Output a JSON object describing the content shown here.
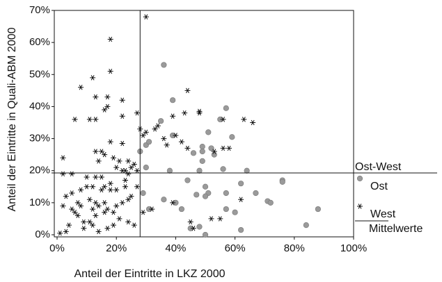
{
  "chart_data": {
    "type": "scatter",
    "xlabel": "Anteil der Eintritte in LKZ 2000",
    "ylabel": "Anteil der Eintritte in Quali-ABM 2000",
    "legend_title": "Ost-West",
    "xlim": [
      0,
      100
    ],
    "ylim": [
      0,
      70
    ],
    "xticks": [
      {
        "value": 0,
        "label": "0%"
      },
      {
        "value": 20,
        "label": "20%"
      },
      {
        "value": 40,
        "label": "40%"
      },
      {
        "value": 60,
        "label": "60%"
      },
      {
        "value": 80,
        "label": "80%"
      },
      {
        "value": 100,
        "label": "100%"
      }
    ],
    "yticks": [
      {
        "value": 0,
        "label": "0%"
      },
      {
        "value": 10,
        "label": "10%"
      },
      {
        "value": 20,
        "label": "20%"
      },
      {
        "value": 30,
        "label": "30%"
      },
      {
        "value": 40,
        "label": "40%"
      },
      {
        "value": 50,
        "label": "50%"
      },
      {
        "value": 60,
        "label": "60%"
      },
      {
        "value": 70,
        "label": "70%"
      }
    ],
    "series": [
      {
        "name": "Ost",
        "color": "#9a9a9a",
        "marker": "circle",
        "x": [
          36,
          39,
          35,
          57,
          55,
          51,
          59,
          49,
          49,
          52,
          46,
          53,
          39,
          30,
          31,
          38,
          49,
          56,
          64,
          48,
          44,
          62,
          67,
          76,
          76,
          71,
          72,
          57,
          50,
          51,
          50,
          47,
          60,
          57,
          48,
          45,
          50,
          62,
          84,
          88,
          30,
          28,
          29,
          31,
          36,
          40,
          42
        ],
        "values": [
          53,
          42,
          35.5,
          39.5,
          36,
          32,
          30.5,
          27.5,
          26,
          27,
          25.5,
          25,
          31,
          28,
          29,
          20,
          23,
          20.5,
          20,
          20,
          17,
          16,
          13,
          17,
          16.5,
          10.5,
          10,
          13,
          15,
          13,
          12,
          12.5,
          7,
          8,
          2.5,
          2,
          0,
          1.5,
          3,
          8,
          21,
          26,
          13,
          8,
          11,
          10,
          8
        ]
      },
      {
        "name": "West",
        "color": "#111111",
        "marker": "asterisk",
        "x": [
          30,
          18,
          18,
          12,
          8,
          13,
          22,
          17,
          44,
          16,
          17,
          22,
          11,
          6,
          13,
          27,
          56,
          63,
          66,
          48,
          48,
          43,
          39,
          33,
          29,
          30,
          34,
          28,
          40,
          36,
          37,
          42,
          44,
          53,
          56,
          58,
          22,
          18,
          15,
          16,
          13,
          2,
          14,
          19,
          21,
          24,
          26,
          23,
          24,
          22,
          20,
          25,
          2,
          5,
          10,
          13,
          15,
          18,
          16,
          12,
          10,
          8,
          5,
          3,
          2,
          5,
          7,
          8,
          11,
          13,
          14,
          17,
          19,
          20,
          16,
          22,
          24,
          25,
          27,
          23,
          20,
          18,
          21,
          24,
          26,
          19,
          17,
          13,
          11,
          9,
          7,
          6,
          4,
          3,
          1,
          9,
          14,
          12,
          29,
          39,
          45,
          46,
          52,
          55,
          62,
          32,
          27,
          15,
          23,
          16,
          12
        ],
        "values": [
          68,
          61,
          51,
          49,
          46,
          43,
          42,
          43,
          45,
          39,
          40,
          37,
          36,
          36,
          36,
          38,
          36,
          36,
          35,
          38,
          38.5,
          38,
          37,
          33,
          31,
          32,
          34,
          33,
          31,
          30,
          28,
          29,
          27,
          26,
          27,
          27,
          28.5,
          29,
          26,
          25,
          26,
          24,
          23,
          24,
          23,
          23,
          22,
          20,
          19,
          20,
          21,
          21,
          19,
          19,
          18,
          18,
          18,
          16,
          15,
          15,
          15,
          14,
          13,
          12,
          9,
          8,
          10,
          9,
          11,
          10,
          9,
          8,
          7,
          9,
          10,
          10,
          11,
          12,
          15,
          15,
          14,
          14,
          5,
          4,
          3,
          3,
          2,
          6,
          4,
          4,
          6,
          7,
          3,
          1,
          0.5,
          2,
          1,
          3,
          7,
          10,
          4,
          2,
          5,
          5,
          11,
          8,
          20,
          14,
          17,
          7,
          8
        ]
      }
    ],
    "mean_lines": {
      "name": "Mittelwerte",
      "x": 28,
      "y": 19.3
    }
  }
}
